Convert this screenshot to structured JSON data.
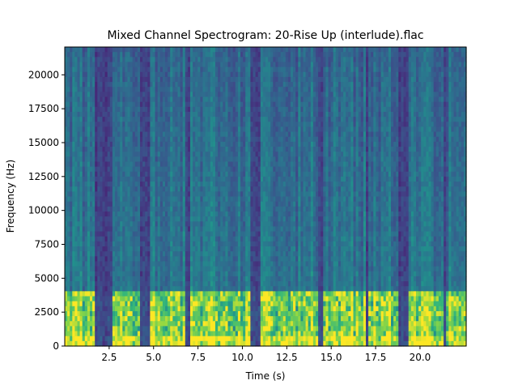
{
  "chart_data": {
    "type": "heatmap",
    "title": "Mixed Channel Spectrogram: 20-Rise Up (interlude).flac",
    "xlabel": "Time (s)",
    "ylabel": "Frequency (Hz)",
    "xlim": [
      0.0,
      22.6
    ],
    "ylim": [
      0,
      22050
    ],
    "x_ticks": [
      2.5,
      5.0,
      7.5,
      10.0,
      12.5,
      15.0,
      17.5,
      20.0
    ],
    "x_tick_labels": [
      "2.5",
      "5.0",
      "7.5",
      "10.0",
      "12.5",
      "15.0",
      "17.5",
      "20.0"
    ],
    "y_ticks": [
      0,
      2500,
      5000,
      7500,
      10000,
      12500,
      15000,
      17500,
      20000
    ],
    "y_tick_labels": [
      "0",
      "2500",
      "5000",
      "7500",
      "10000",
      "12500",
      "15000",
      "17500",
      "20000"
    ],
    "colormap": "viridis",
    "quiet_time_ranges": [
      [
        1.7,
        2.7
      ],
      [
        4.3,
        4.8
      ],
      [
        6.8,
        7.1
      ],
      [
        10.4,
        11.0
      ],
      [
        14.2,
        14.5
      ],
      [
        16.9,
        17.1
      ],
      [
        18.8,
        19.3
      ],
      [
        21.3,
        21.5
      ]
    ],
    "loud_band_upper_hz": 4200
  }
}
